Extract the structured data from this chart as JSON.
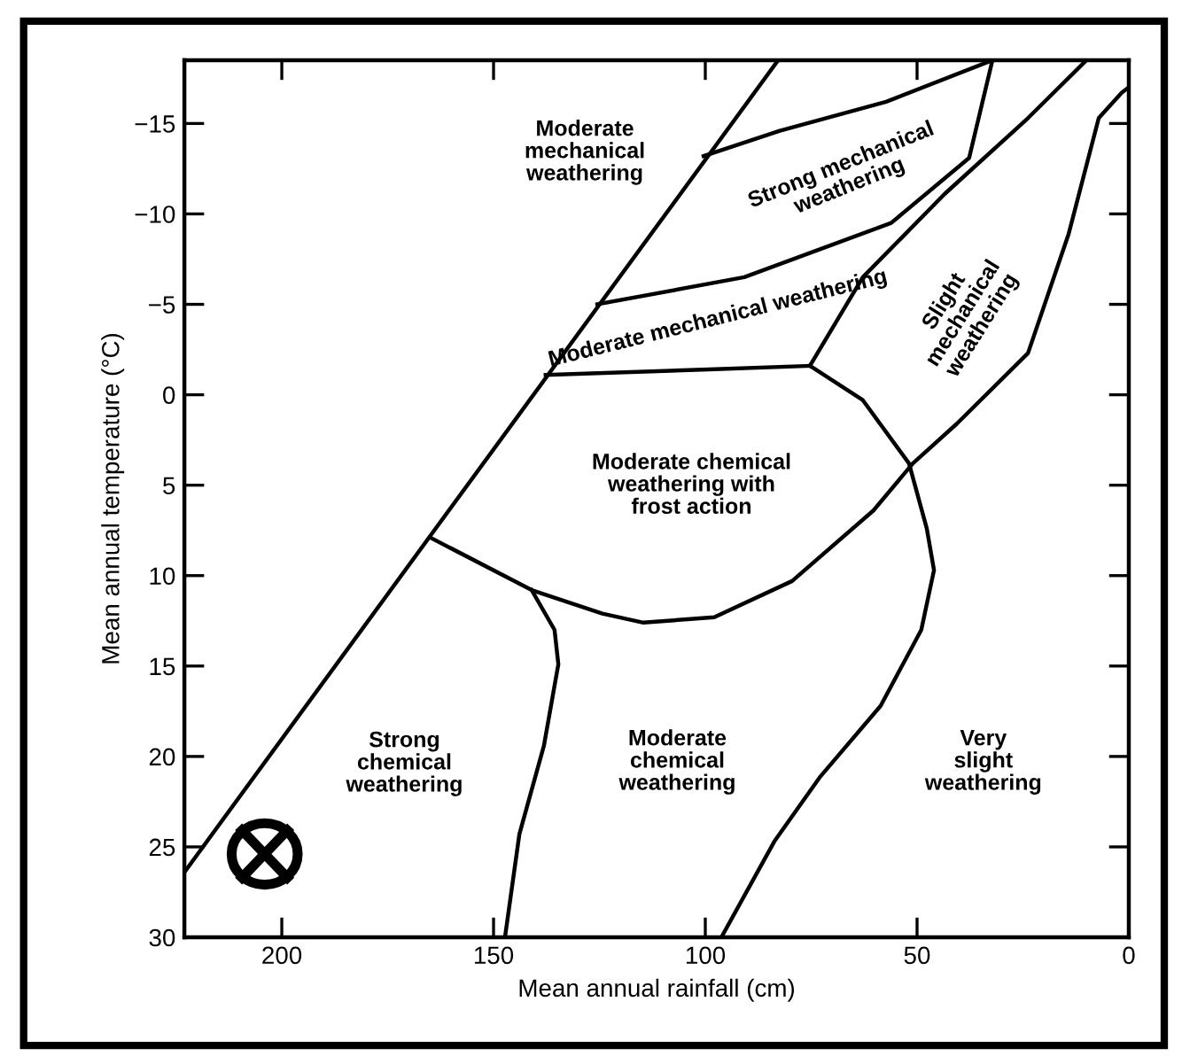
{
  "chart_data": {
    "type": "line",
    "xlabel": "Mean annual rainfall (cm)",
    "ylabel": "Mean annual temperature (°C)",
    "xlim": [
      223,
      0
    ],
    "xticks": [
      200,
      150,
      100,
      50,
      0
    ],
    "ylim": [
      30,
      -18.5
    ],
    "yticks": [
      {
        "value": -15,
        "label": "−15"
      },
      {
        "value": -10,
        "label": "−10"
      },
      {
        "value": -5,
        "label": "−5"
      },
      0,
      5,
      10,
      15,
      20,
      25,
      30
    ],
    "grid": false,
    "marker": "none",
    "line_style": "solid",
    "series": [
      {
        "color": "#000000",
        "x": [
          223,
          82.8
        ],
        "values": [
          26.4,
          -18.5
        ]
      },
      {
        "color": "#000000",
        "x": [
          100.4,
          82.4,
          57.3,
          32.2
        ],
        "values": [
          -13.2,
          -14.6,
          -16.2,
          -18.5
        ]
      },
      {
        "color": "#000000",
        "x": [
          125.5,
          90.8,
          56.1,
          37.7,
          32.2
        ],
        "values": [
          -5.0,
          -6.5,
          -9.5,
          -13.1,
          -18.5
        ]
      },
      {
        "color": "#000000",
        "x": [
          137.7,
          99.2,
          75.3
        ],
        "values": [
          -1.1,
          -1.4,
          -1.6
        ]
      },
      {
        "color": "#000000",
        "x": [
          75.3,
          62.8,
          43.5,
          23.8,
          10.0
        ],
        "values": [
          -1.6,
          -6.5,
          -11.1,
          -15.3,
          -18.5
        ]
      },
      {
        "color": "#000000",
        "x": [
          164.9,
          141.0,
          124.3,
          114.6,
          97.9,
          79.5,
          60.3,
          51.0,
          40.6,
          23.8,
          14.2,
          7.1,
          1.7,
          0
        ],
        "values": [
          7.9,
          10.8,
          12.1,
          12.6,
          12.3,
          10.3,
          6.4,
          3.8,
          1.6,
          -2.3,
          -8.9,
          -15.3,
          -16.7,
          -17.0
        ]
      },
      {
        "color": "#000000",
        "x": [
          75.3,
          62.8,
          51.9,
          47.7,
          46.0,
          49.0,
          58.6,
          72.8,
          83.7,
          96.2
        ],
        "values": [
          -1.6,
          0.3,
          3.8,
          7.4,
          9.7,
          13.0,
          17.2,
          21.1,
          24.7,
          30
        ]
      },
      {
        "color": "#000000",
        "x": [
          141.0,
          135.6,
          134.7,
          138.1,
          143.9,
          147.3
        ],
        "values": [
          10.8,
          13.0,
          14.9,
          19.4,
          24.3,
          30
        ]
      }
    ],
    "annotations": [
      "Moderate\nmechanical\nweathering",
      "Strong mechanical\nweathering",
      "Moderate mechanical weathering",
      "Slight\nmechanical\nweathering",
      "Moderate chemical\nweathering with\nfrost action",
      "Strong\nchemical\nweathering",
      "Moderate\nchemical\nweathering",
      "Very\nslight\nweathering"
    ]
  }
}
